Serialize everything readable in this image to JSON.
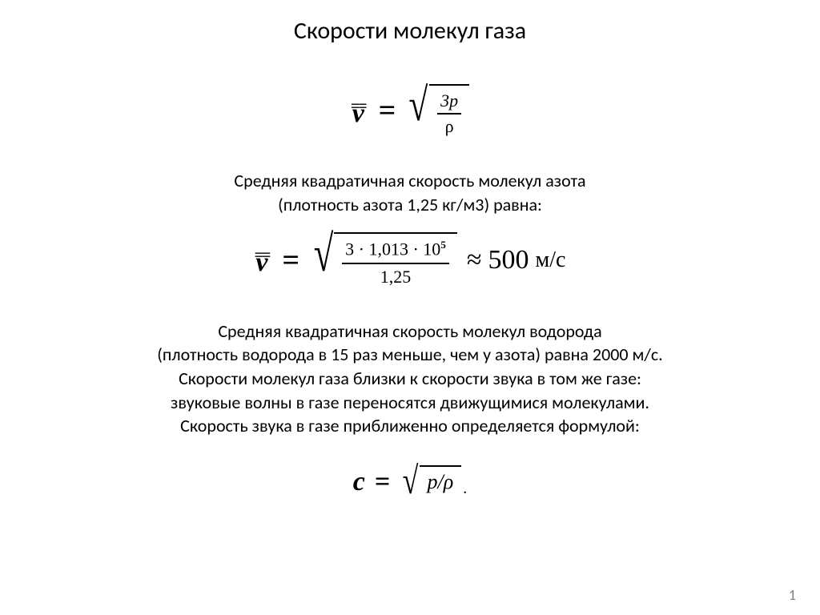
{
  "slide": {
    "title": "Скорости молекул газа",
    "page_number": "1",
    "background_color": "#ffffff",
    "text_color": "#000000",
    "page_number_color": "#7f7f7f",
    "title_fontsize": 30,
    "body_fontsize": 22
  },
  "formula1": {
    "lhs_symbol": "v",
    "lhs_overbars": "==",
    "numerator": "3p",
    "denominator": "ρ"
  },
  "paragraph1": {
    "line1": "Средняя квадратичная скорость молекул азота",
    "line2": "(плотность азота 1,25 кг/м3) равна:"
  },
  "formula2": {
    "lhs_symbol": "v",
    "lhs_overbars": "==",
    "numerator_pre": "3 · 1,013 · 10",
    "numerator_exp": "5",
    "denominator": "1,25",
    "approx_symbol": "≈",
    "result_value": "500",
    "result_unit": "м/с"
  },
  "paragraph2": {
    "line1": "Средняя квадратичная скорость молекул водорода",
    "line2": "(плотность водорода в 15 раз меньше, чем у азота) равна 2000 м/с.",
    "line3": "Скорости молекул газа близки к скорости звука в том же газе:",
    "line4": "звуковые волны в газе переносятся движущимися молекулами.",
    "line5": "Скорость звука в газе приближенно определяется формулой:"
  },
  "formula3": {
    "lhs_symbol": "c",
    "radicand": "p/ρ",
    "trailing": "."
  }
}
